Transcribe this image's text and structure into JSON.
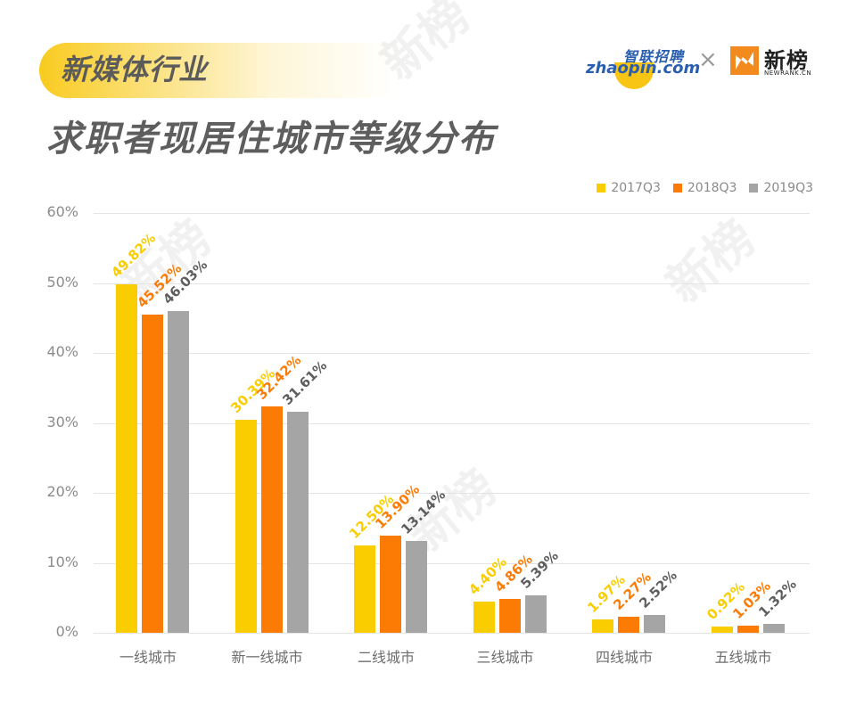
{
  "header": {
    "tag": "新媒体行业",
    "title": "求职者现居住城市等级分布"
  },
  "logos": {
    "zhaopin_cn": "智联招聘",
    "zhaopin_en": "zhaopin.com",
    "separator": "×",
    "newrank_cn": "新榜",
    "newrank_en": "NEWRANK.CN"
  },
  "watermark": {
    "text": "新榜",
    "subtext": "NEWRANK.CN"
  },
  "colors": {
    "2017Q3": "#f9cd00",
    "2018Q3": "#fb7b05",
    "2019Q3": "#a5a5a5",
    "label_2019Q3": "#5e5e5e"
  },
  "chart_data": {
    "type": "bar",
    "title": "求职者现居住城市等级分布",
    "subtitle": "新媒体行业",
    "xlabel": "",
    "ylabel": "",
    "ylim": [
      0,
      60
    ],
    "yticks": [
      "0%",
      "10%",
      "20%",
      "30%",
      "40%",
      "50%",
      "60%"
    ],
    "grid": true,
    "legend_position": "top-right",
    "categories": [
      "一线城市",
      "新一线城市",
      "二线城市",
      "三线城市",
      "四线城市",
      "五线城市"
    ],
    "series": [
      {
        "name": "2017Q3",
        "values": [
          49.82,
          30.39,
          12.5,
          4.4,
          1.97,
          0.92
        ],
        "labels": [
          "49.82%",
          "30.39%",
          "12.50%",
          "4.40%",
          "1.97%",
          "0.92%"
        ]
      },
      {
        "name": "2018Q3",
        "values": [
          45.52,
          32.42,
          13.9,
          4.86,
          2.27,
          1.03
        ],
        "labels": [
          "45.52%",
          "32.42%",
          "13.90%",
          "4.86%",
          "2.27%",
          "1.03%"
        ]
      },
      {
        "name": "2019Q3",
        "values": [
          46.03,
          31.61,
          13.14,
          5.39,
          2.52,
          1.32
        ],
        "labels": [
          "46.03%",
          "31.61%",
          "13.14%",
          "5.39%",
          "2.52%",
          "1.32%"
        ]
      }
    ]
  }
}
